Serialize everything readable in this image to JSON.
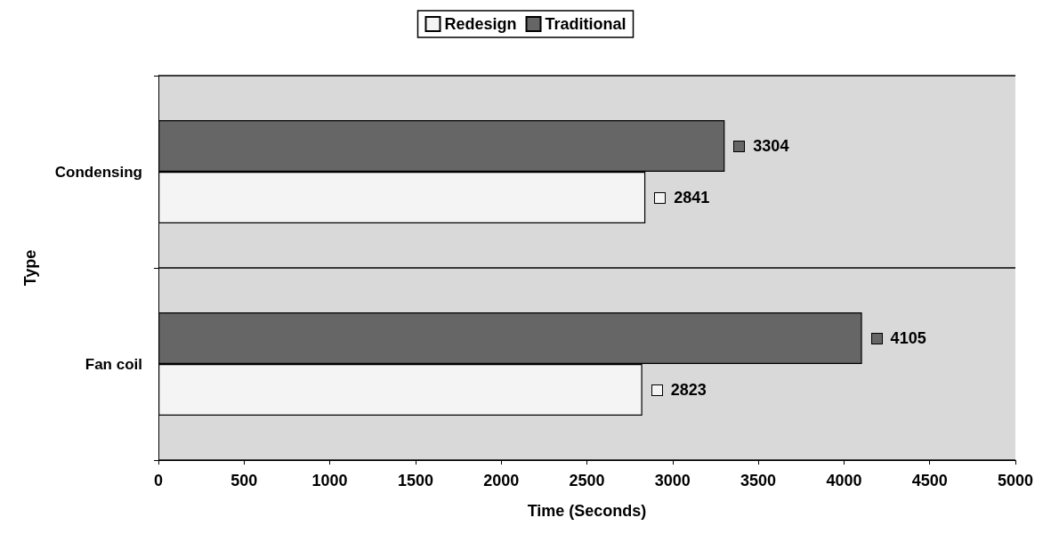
{
  "chart_data": {
    "type": "bar",
    "orientation": "horizontal",
    "categories": [
      "Condensing",
      "Fan coil"
    ],
    "series": [
      {
        "name": "Redesign",
        "color": "#f4f4f4",
        "values": [
          2841,
          2823
        ]
      },
      {
        "name": "Traditional",
        "color": "#666666",
        "values": [
          3304,
          4105
        ]
      }
    ],
    "xlabel": "Time (Seconds)",
    "ylabel": "Type",
    "xlim": [
      0,
      5000
    ],
    "xticks": [
      0,
      500,
      1000,
      1500,
      2000,
      2500,
      3000,
      3500,
      4000,
      4500,
      5000
    ],
    "data_labels": true,
    "legend": "top",
    "grid": "y"
  }
}
